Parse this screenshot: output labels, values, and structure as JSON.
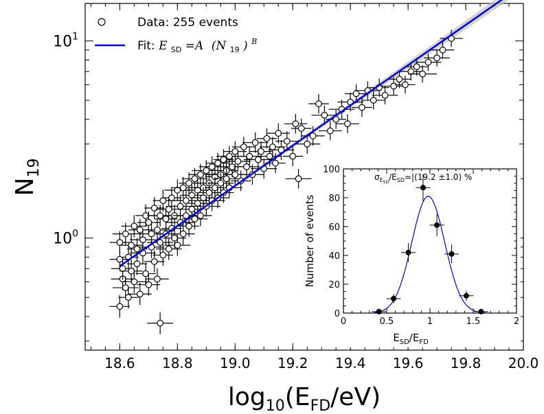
{
  "chart_data": [
    {
      "type": "scatter",
      "title": "",
      "xlabel": {
        "main": "log",
        "sub": "10",
        "rest": "(E",
        "sub2": "FD",
        "rest2": "/eV)"
      },
      "ylabel": {
        "main": "N",
        "sub": "19"
      },
      "xlim": [
        18.48,
        20.0
      ],
      "ylim": [
        0.27,
        15.5
      ],
      "yscale": "log",
      "x_ticks": [
        "18.6",
        "18.8",
        "19.0",
        "19.2",
        "19.4",
        "19.6",
        "19.8",
        "20.0"
      ],
      "y_ticks": [
        {
          "base": "10",
          "exp": "0"
        },
        {
          "base": "10",
          "exp": "1"
        }
      ],
      "legend": {
        "position": "top-left",
        "data_label": "Data: 255 events",
        "fit_prefix": "Fit: ",
        "fit_formula": {
          "e": "E",
          "e_sub": "SD",
          "eq": "=A",
          "n": "(N",
          "n_sub": "19",
          "close": ")",
          "exp": "B"
        }
      },
      "fit": {
        "A": 0.7,
        "B_exponent_in_log10_units": 1.02,
        "x_ref": 18.6,
        "y_ref": 0.72,
        "x_range": [
          18.6,
          19.98
        ],
        "color": "#0000cc",
        "band_color": "#c0c0c0"
      },
      "series_note": "Events with error bars; values estimated from the plot",
      "points": [
        [
          18.6,
          0.95
        ],
        [
          18.61,
          0.62
        ],
        [
          18.6,
          0.45
        ],
        [
          18.62,
          1.05
        ],
        [
          18.63,
          0.8
        ],
        [
          18.6,
          0.78
        ],
        [
          18.61,
          0.7
        ],
        [
          18.62,
          0.56
        ],
        [
          18.64,
          0.92
        ],
        [
          18.63,
          0.5
        ],
        [
          18.65,
          1.15
        ],
        [
          18.64,
          0.68
        ],
        [
          18.66,
          0.88
        ],
        [
          18.65,
          0.6
        ],
        [
          18.67,
          1.1
        ],
        [
          18.66,
          0.74
        ],
        [
          18.68,
          0.98
        ],
        [
          18.67,
          0.52
        ],
        [
          18.69,
          1.3
        ],
        [
          18.68,
          0.84
        ],
        [
          18.7,
          1.2
        ],
        [
          18.69,
          0.66
        ],
        [
          18.71,
          1.05
        ],
        [
          18.7,
          0.58
        ],
        [
          18.72,
          1.42
        ],
        [
          18.71,
          0.9
        ],
        [
          18.73,
          1.1
        ],
        [
          18.72,
          0.76
        ],
        [
          18.74,
          1.3
        ],
        [
          18.73,
          0.62
        ],
        [
          18.75,
          1.55
        ],
        [
          18.74,
          0.95
        ],
        [
          18.76,
          1.25
        ],
        [
          18.75,
          0.82
        ],
        [
          18.77,
          1.4
        ],
        [
          18.76,
          1.05
        ],
        [
          18.78,
          1.6
        ],
        [
          18.77,
          0.88
        ],
        [
          18.79,
          1.3
        ],
        [
          18.78,
          1.12
        ],
        [
          18.8,
          1.75
        ],
        [
          18.79,
          1.0
        ],
        [
          18.81,
          1.45
        ],
        [
          18.8,
          0.92
        ],
        [
          18.82,
          1.8
        ],
        [
          18.81,
          1.2
        ],
        [
          18.83,
          1.55
        ],
        [
          18.82,
          1.05
        ],
        [
          18.84,
          1.9
        ],
        [
          18.83,
          1.3
        ],
        [
          18.85,
          1.65
        ],
        [
          18.84,
          1.15
        ],
        [
          18.86,
          2.0
        ],
        [
          18.85,
          1.4
        ],
        [
          18.87,
          1.75
        ],
        [
          18.86,
          1.25
        ],
        [
          18.88,
          2.1
        ],
        [
          18.87,
          1.5
        ],
        [
          18.89,
          1.8
        ],
        [
          18.88,
          1.3
        ],
        [
          18.9,
          2.2
        ],
        [
          18.89,
          1.6
        ],
        [
          18.91,
          1.9
        ],
        [
          18.9,
          1.45
        ],
        [
          18.92,
          2.3
        ],
        [
          18.91,
          1.7
        ],
        [
          18.93,
          2.05
        ],
        [
          18.92,
          1.55
        ],
        [
          18.94,
          2.4
        ],
        [
          18.93,
          1.8
        ],
        [
          18.95,
          2.1
        ],
        [
          18.94,
          1.6
        ],
        [
          18.96,
          2.5
        ],
        [
          18.95,
          1.9
        ],
        [
          18.97,
          2.2
        ],
        [
          18.96,
          1.7
        ],
        [
          18.98,
          2.6
        ],
        [
          18.97,
          2.0
        ],
        [
          18.99,
          2.3
        ],
        [
          18.98,
          1.8
        ],
        [
          19.0,
          2.75
        ],
        [
          19.0,
          2.1
        ],
        [
          19.01,
          2.45
        ],
        [
          19.02,
          1.95
        ],
        [
          19.03,
          2.9
        ],
        [
          19.04,
          2.3
        ],
        [
          19.05,
          2.6
        ],
        [
          19.06,
          2.1
        ],
        [
          19.07,
          3.05
        ],
        [
          19.08,
          2.5
        ],
        [
          19.09,
          2.75
        ],
        [
          19.1,
          2.25
        ],
        [
          19.11,
          3.2
        ],
        [
          19.12,
          2.6
        ],
        [
          19.13,
          2.9
        ],
        [
          19.14,
          2.4
        ],
        [
          19.15,
          3.4
        ],
        [
          19.16,
          2.8
        ],
        [
          19.18,
          3.1
        ],
        [
          19.2,
          2.6
        ],
        [
          19.21,
          3.8
        ],
        [
          19.22,
          2.0
        ],
        [
          19.23,
          3.6
        ],
        [
          19.25,
          3.0
        ],
        [
          19.27,
          3.3
        ],
        [
          19.29,
          4.8
        ],
        [
          19.31,
          4.2
        ],
        [
          19.33,
          3.5
        ],
        [
          19.35,
          4.0
        ],
        [
          19.37,
          4.5
        ],
        [
          19.39,
          3.8
        ],
        [
          19.4,
          4.9
        ],
        [
          19.42,
          5.4
        ],
        [
          19.44,
          4.6
        ],
        [
          19.46,
          5.6
        ],
        [
          19.48,
          5.0
        ],
        [
          19.5,
          5.8
        ],
        [
          19.52,
          5.3
        ],
        [
          19.55,
          5.9
        ],
        [
          19.57,
          6.4
        ],
        [
          19.59,
          6.0
        ],
        [
          19.61,
          7.0
        ],
        [
          19.63,
          7.4
        ],
        [
          19.65,
          6.8
        ],
        [
          19.67,
          7.8
        ],
        [
          19.7,
          8.2
        ],
        [
          19.72,
          9.0
        ],
        [
          19.75,
          10.3
        ],
        [
          18.74,
          0.37
        ]
      ]
    },
    {
      "type": "scatter",
      "title": "",
      "inset": true,
      "annotation": {
        "sigma": "σ",
        "e_sd": "E",
        "e_sd_sub": "SD",
        "rest": "/E",
        "sd2": "SD",
        "eq": "=|(19.2  ±1.0) %"
      },
      "xlabel": {
        "e": "E",
        "sub1": "SD",
        "slash": "/E",
        "sub2": "FD"
      },
      "ylabel": "Number of events",
      "xlim": [
        0,
        2
      ],
      "ylim": [
        0,
        100
      ],
      "x_ticks": [
        "0",
        "0.5",
        "1",
        "1.5",
        "2"
      ],
      "y_ticks": [
        "0",
        "20",
        "40",
        "60",
        "80",
        "100"
      ],
      "points": [
        {
          "x": 0.41,
          "y": 1,
          "yerr": 1
        },
        {
          "x": 0.58,
          "y": 10,
          "yerr": 3.2
        },
        {
          "x": 0.75,
          "y": 42,
          "yerr": 6.5
        },
        {
          "x": 0.92,
          "y": 87,
          "yerr": 9.3
        },
        {
          "x": 1.08,
          "y": 61,
          "yerr": 7.8
        },
        {
          "x": 1.25,
          "y": 41,
          "yerr": 6.4
        },
        {
          "x": 1.42,
          "y": 12,
          "yerr": 3.5
        },
        {
          "x": 1.59,
          "y": 1,
          "yerr": 1
        }
      ],
      "bin_half_width": 0.083,
      "gauss_fit": {
        "amplitude": 81,
        "mean": 0.98,
        "sigma": 0.19,
        "color": "#0000cc"
      }
    }
  ]
}
